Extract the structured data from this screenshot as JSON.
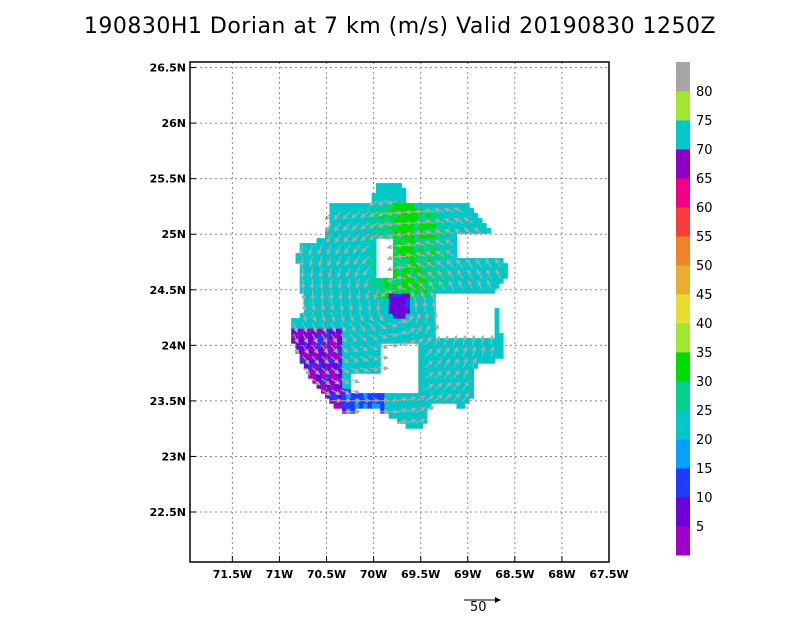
{
  "chart_data": {
    "type": "heatmap",
    "title": "190830H1 Dorian at 7 km (m/s) Valid 20190830 1250Z",
    "storm": "Dorian",
    "level": "7 km",
    "units": "m/s",
    "x": {
      "ticks": [
        -71.5,
        -71,
        -70.5,
        -70,
        -69.5,
        -69,
        -68.5,
        -68,
        -67.5
      ],
      "tick_labels": [
        "71.5W",
        "71W",
        "70.5W",
        "70W",
        "69.5W",
        "69W",
        "68.5W",
        "68W",
        "67.5W"
      ],
      "range": [
        -71.95,
        -67.5
      ]
    },
    "y": {
      "ticks": [
        22.5,
        23,
        23.5,
        24,
        24.5,
        25,
        25.5,
        26,
        26.5
      ],
      "tick_labels": [
        "22.5N",
        "23N",
        "23.5N",
        "24N",
        "24.5N",
        "25N",
        "25.5N",
        "26N",
        "26.5N"
      ],
      "range": [
        22.05,
        26.55
      ]
    },
    "grid": true,
    "colorbar": {
      "levels": [
        5,
        10,
        15,
        20,
        25,
        30,
        35,
        40,
        45,
        50,
        55,
        60,
        65,
        70,
        75,
        80
      ],
      "colors": [
        "#a000c8",
        "#6e00dc",
        "#1e3cff",
        "#00a0ff",
        "#00c8c8",
        "#00d28c",
        "#00dc00",
        "#a0e632",
        "#e6dc32",
        "#e6af2d",
        "#f08228",
        "#fa3c3c",
        "#f00082",
        "#8c00c8",
        "#00c8c8",
        "#a0e632",
        "#a6a6a6"
      ]
    },
    "storm_center": {
      "lon": -69.75,
      "lat": 24.35
    },
    "reference_vector": {
      "value": 50,
      "label": "50"
    }
  }
}
